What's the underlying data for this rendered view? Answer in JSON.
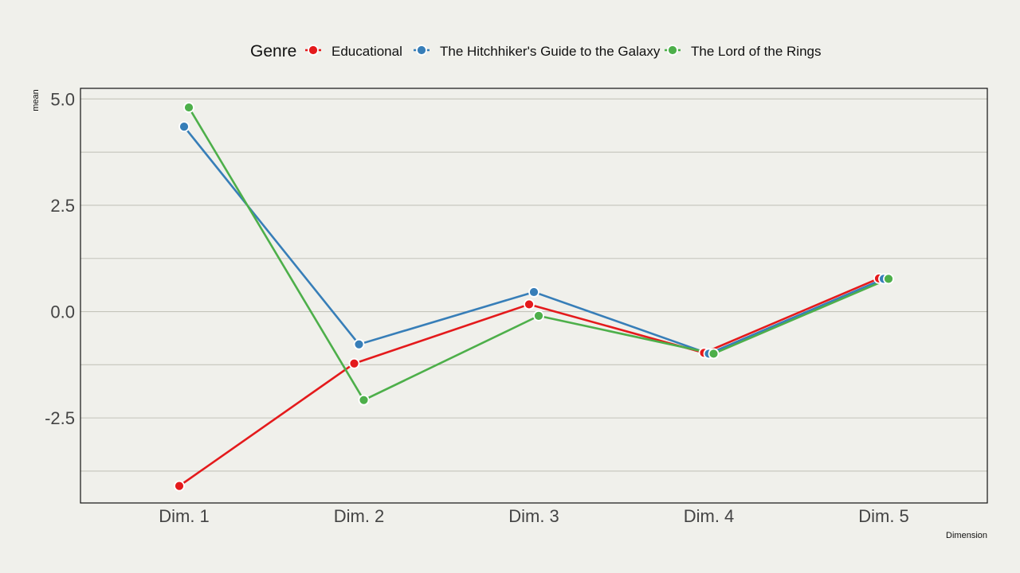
{
  "chart_data": {
    "type": "line",
    "categories": [
      "Dim. 1",
      "Dim. 2",
      "Dim. 3",
      "Dim. 4",
      "Dim. 5"
    ],
    "xlabel": "Dimension",
    "ylabel": "mean",
    "ylim": [
      -4.5,
      5.25
    ],
    "yticks": [
      5.0,
      2.5,
      0.0,
      -2.5
    ],
    "ytick_labels": [
      "5.0",
      "2.5",
      "0.0",
      "-2.5"
    ],
    "grid": "horizontal",
    "legend": {
      "title": "Genre",
      "position": "top"
    },
    "series": [
      {
        "name": "Educational",
        "color": "#e41a1c",
        "values": [
          -4.1,
          -1.22,
          0.17,
          -0.97,
          0.78
        ]
      },
      {
        "name": "The Hitchhiker's Guide to the Galaxy",
        "color": "#377eb8",
        "values": [
          4.35,
          -0.77,
          0.46,
          -0.99,
          0.77
        ]
      },
      {
        "name": "The Lord of the Rings",
        "color": "#4daf4a",
        "values": [
          4.8,
          -2.08,
          -0.1,
          -0.99,
          0.77
        ]
      }
    ]
  }
}
